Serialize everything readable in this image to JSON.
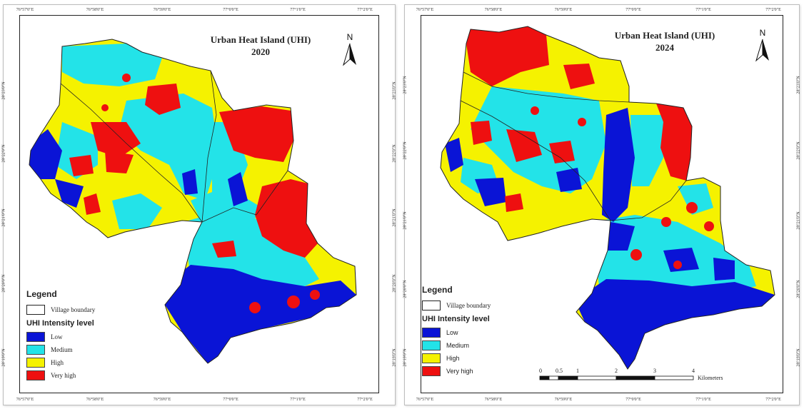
{
  "maps": [
    {
      "title_line1": "Urban Heat Island (UHI)",
      "title_line2": "2020",
      "north_label": "N",
      "ticks_top": [
        "76°57'0\"E",
        "76°58'0\"E",
        "76°59'0\"E",
        "77°0'0\"E",
        "77°1'0\"E",
        "77°2'0\"E"
      ],
      "ticks_bottom": [
        "76°57'0\"E",
        "76°58'0\"E",
        "76°59'0\"E",
        "77°0'0\"E",
        "77°1'0\"E",
        "77°2'0\"E"
      ],
      "ticks_left": [
        "28°23'0\"N",
        "28°22'0\"N",
        "28°21'0\"N",
        "28°20'0\"N",
        "28°19'0\"N"
      ],
      "ticks_right": [
        "28°23'0\"N",
        "28°22'0\"N",
        "28°21'0\"N",
        "28°20'0\"N",
        "28°19'0\"N"
      ],
      "legend": {
        "title": "Legend",
        "boundary_label": "Village boundary",
        "intensity_title": "UHI Intensity level",
        "items": [
          "Low",
          "Medium",
          "High",
          "Very high"
        ]
      }
    },
    {
      "title_line1": "Urban Heat Island (UHI)",
      "title_line2": "2024",
      "north_label": "N",
      "ticks_top": [
        "76°57'0\"E",
        "76°58'0\"E",
        "76°59'0\"E",
        "77°0'0\"E",
        "77°1'0\"E",
        "77°2'0\"E"
      ],
      "ticks_bottom": [
        "76°57'0\"E",
        "76°58'0\"E",
        "76°59'0\"E",
        "77°0'0\"E",
        "77°1'0\"E",
        "77°2'0\"E"
      ],
      "ticks_left": [
        "28°23'0\"N",
        "28°22'0\"N",
        "28°21'0\"N",
        "28°20'0\"N",
        "28°19'0\"N"
      ],
      "ticks_right": [
        "28°23'0\"N",
        "28°22'0\"N",
        "28°21'0\"N",
        "28°20'0\"N",
        "28°19'0\"N"
      ],
      "legend": {
        "title": "Legend",
        "boundary_label": "Village boundary",
        "intensity_title": "UHI Intensity level",
        "items": [
          "Low",
          "Medium",
          "High",
          "Very high"
        ]
      },
      "scale": {
        "labels": [
          "0",
          "0.5",
          "1",
          "2",
          "3",
          "4"
        ],
        "unit": "Kilometers"
      }
    }
  ],
  "colors": {
    "low": "#0a14d6",
    "medium": "#23e3e8",
    "high": "#f5f200",
    "very_high": "#ee1010",
    "boundary": "#222222"
  }
}
